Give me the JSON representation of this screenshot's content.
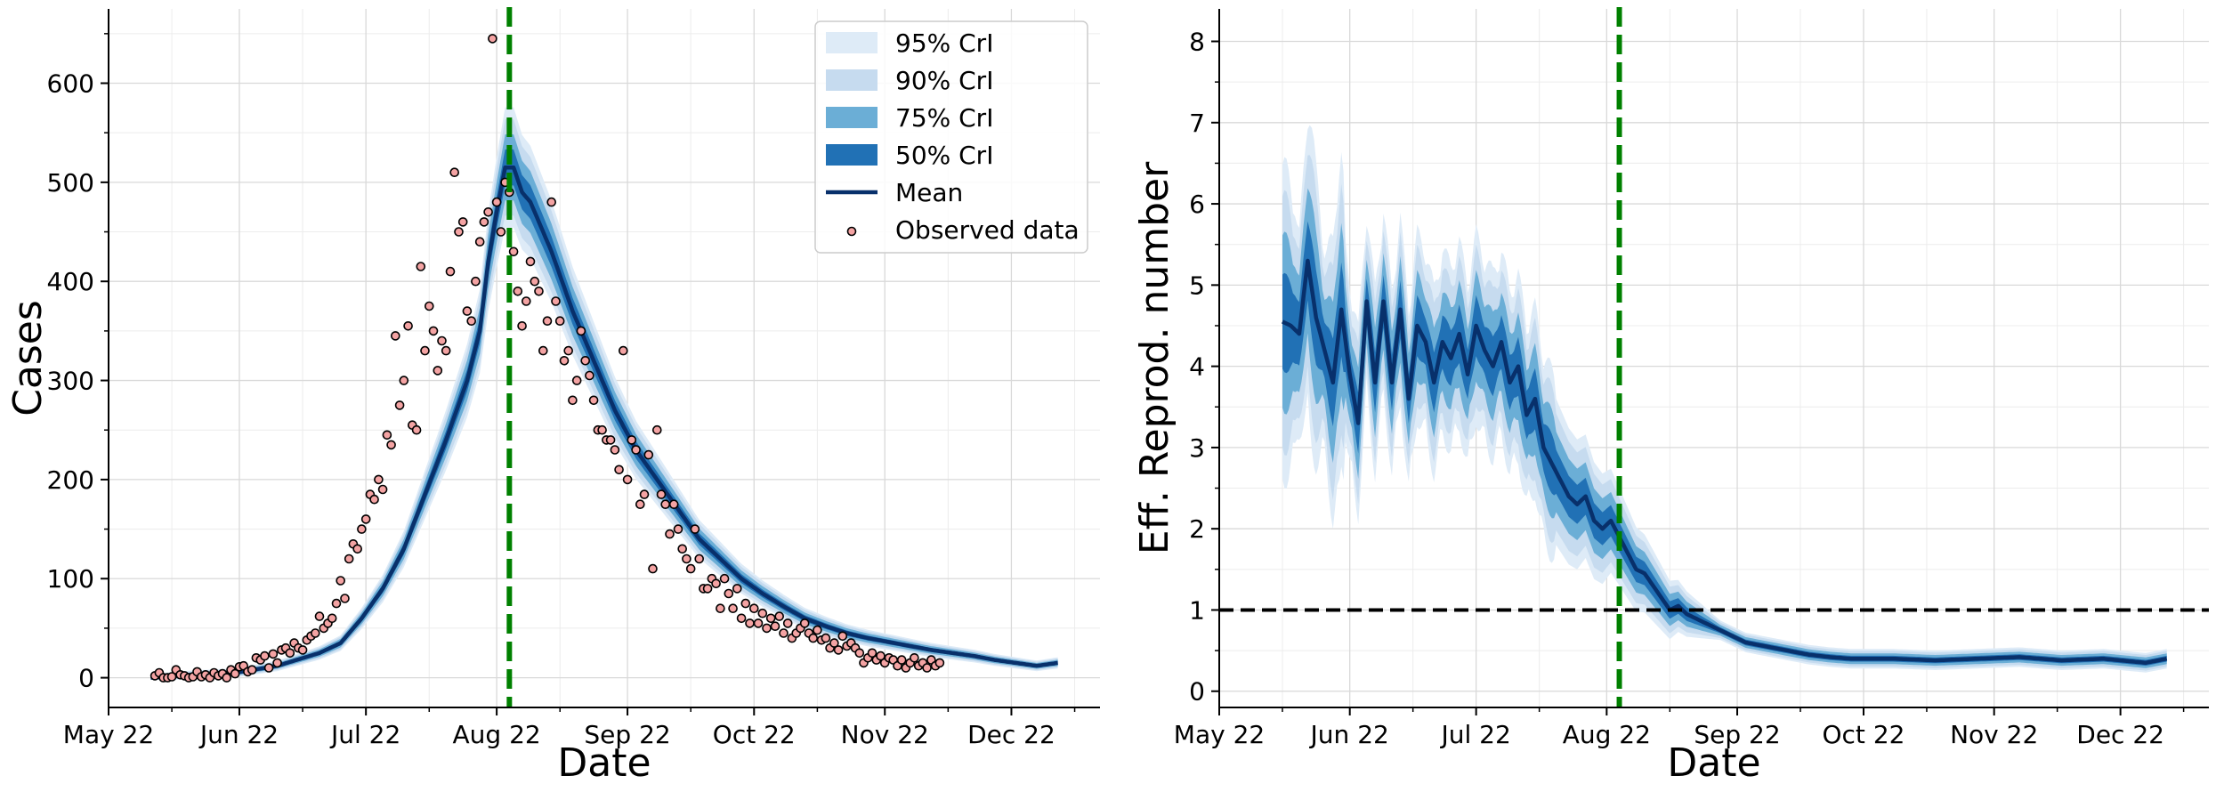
{
  "chart_data": [
    {
      "type": "line",
      "panel": "left",
      "title": "",
      "xlabel": "Date",
      "ylabel": "Cases",
      "x_tick_labels": [
        "May 22",
        "Jun 22",
        "Jul 22",
        "Aug 22",
        "Sep 22",
        "Oct 22",
        "Nov 22",
        "Dec 22"
      ],
      "y_ticks": [
        0,
        100,
        200,
        300,
        400,
        500,
        600
      ],
      "ylim": [
        -30,
        675
      ],
      "xlim_days": [
        0,
        235
      ],
      "grid": true,
      "legend_position": "top-right",
      "legend": [
        "95% CrI",
        "90% CrI",
        "75% CrI",
        "50% CrI",
        "Mean",
        "Observed data"
      ],
      "vline_day": 95,
      "band_colors": [
        "#deebf7",
        "#c6dbef",
        "#6baed6",
        "#2171b5"
      ],
      "mean_color": "#08306b",
      "vline_color": "#008000",
      "point_fill": "#f4a3a3",
      "mean_knots": [
        [
          10,
          0
        ],
        [
          20,
          3
        ],
        [
          30,
          5
        ],
        [
          40,
          12
        ],
        [
          50,
          25
        ],
        [
          55,
          35
        ],
        [
          60,
          60
        ],
        [
          65,
          90
        ],
        [
          70,
          130
        ],
        [
          75,
          185
        ],
        [
          80,
          240
        ],
        [
          85,
          300
        ],
        [
          88,
          350
        ],
        [
          90,
          420
        ],
        [
          92,
          470
        ],
        [
          94,
          515
        ],
        [
          96,
          515
        ],
        [
          98,
          490
        ],
        [
          100,
          480
        ],
        [
          102,
          460
        ],
        [
          105,
          430
        ],
        [
          110,
          370
        ],
        [
          115,
          320
        ],
        [
          120,
          270
        ],
        [
          125,
          230
        ],
        [
          130,
          200
        ],
        [
          135,
          170
        ],
        [
          140,
          140
        ],
        [
          145,
          120
        ],
        [
          150,
          100
        ],
        [
          155,
          85
        ],
        [
          160,
          72
        ],
        [
          165,
          60
        ],
        [
          170,
          52
        ],
        [
          175,
          45
        ],
        [
          180,
          40
        ],
        [
          185,
          36
        ],
        [
          190,
          32
        ],
        [
          195,
          28
        ],
        [
          200,
          25
        ],
        [
          205,
          22
        ],
        [
          210,
          18
        ],
        [
          215,
          15
        ],
        [
          220,
          12
        ],
        [
          225,
          15
        ]
      ],
      "observed": [
        [
          11,
          2
        ],
        [
          12,
          5
        ],
        [
          13,
          0
        ],
        [
          14,
          0
        ],
        [
          15,
          1
        ],
        [
          16,
          8
        ],
        [
          17,
          3
        ],
        [
          18,
          2
        ],
        [
          19,
          0
        ],
        [
          20,
          1
        ],
        [
          21,
          6
        ],
        [
          22,
          1
        ],
        [
          23,
          3
        ],
        [
          24,
          0
        ],
        [
          25,
          5
        ],
        [
          26,
          2
        ],
        [
          27,
          4
        ],
        [
          28,
          0
        ],
        [
          29,
          8
        ],
        [
          30,
          4
        ],
        [
          31,
          11
        ],
        [
          32,
          12
        ],
        [
          33,
          6
        ],
        [
          34,
          8
        ],
        [
          35,
          20
        ],
        [
          36,
          18
        ],
        [
          37,
          22
        ],
        [
          38,
          10
        ],
        [
          39,
          24
        ],
        [
          40,
          15
        ],
        [
          41,
          28
        ],
        [
          42,
          30
        ],
        [
          43,
          25
        ],
        [
          44,
          35
        ],
        [
          45,
          30
        ],
        [
          46,
          28
        ],
        [
          47,
          38
        ],
        [
          48,
          42
        ],
        [
          49,
          45
        ],
        [
          50,
          62
        ],
        [
          51,
          50
        ],
        [
          52,
          55
        ],
        [
          53,
          60
        ],
        [
          54,
          75
        ],
        [
          55,
          98
        ],
        [
          56,
          80
        ],
        [
          57,
          120
        ],
        [
          58,
          135
        ],
        [
          59,
          130
        ],
        [
          60,
          150
        ],
        [
          61,
          160
        ],
        [
          62,
          185
        ],
        [
          63,
          180
        ],
        [
          64,
          200
        ],
        [
          65,
          190
        ],
        [
          66,
          245
        ],
        [
          67,
          235
        ],
        [
          68,
          345
        ],
        [
          69,
          275
        ],
        [
          70,
          300
        ],
        [
          71,
          355
        ],
        [
          72,
          255
        ],
        [
          73,
          250
        ],
        [
          74,
          415
        ],
        [
          75,
          330
        ],
        [
          76,
          375
        ],
        [
          77,
          350
        ],
        [
          78,
          310
        ],
        [
          79,
          340
        ],
        [
          80,
          330
        ],
        [
          81,
          410
        ],
        [
          82,
          510
        ],
        [
          83,
          450
        ],
        [
          84,
          460
        ],
        [
          85,
          370
        ],
        [
          86,
          360
        ],
        [
          87,
          400
        ],
        [
          88,
          440
        ],
        [
          89,
          460
        ],
        [
          90,
          470
        ],
        [
          91,
          645
        ],
        [
          92,
          480
        ],
        [
          93,
          450
        ],
        [
          94,
          500
        ],
        [
          95,
          490
        ],
        [
          96,
          430
        ],
        [
          97,
          390
        ],
        [
          98,
          355
        ],
        [
          99,
          380
        ],
        [
          100,
          420
        ],
        [
          101,
          400
        ],
        [
          102,
          390
        ],
        [
          103,
          330
        ],
        [
          104,
          360
        ],
        [
          105,
          480
        ],
        [
          106,
          380
        ],
        [
          107,
          360
        ],
        [
          108,
          320
        ],
        [
          109,
          330
        ],
        [
          110,
          280
        ],
        [
          111,
          300
        ],
        [
          112,
          350
        ],
        [
          113,
          320
        ],
        [
          114,
          305
        ],
        [
          115,
          280
        ],
        [
          116,
          250
        ],
        [
          117,
          250
        ],
        [
          118,
          240
        ],
        [
          119,
          240
        ],
        [
          120,
          230
        ],
        [
          121,
          210
        ],
        [
          122,
          330
        ],
        [
          123,
          200
        ],
        [
          124,
          240
        ],
        [
          125,
          230
        ],
        [
          126,
          175
        ],
        [
          127,
          185
        ],
        [
          128,
          225
        ],
        [
          129,
          110
        ],
        [
          130,
          250
        ],
        [
          131,
          185
        ],
        [
          132,
          175
        ],
        [
          133,
          145
        ],
        [
          134,
          175
        ],
        [
          135,
          150
        ],
        [
          136,
          130
        ],
        [
          137,
          120
        ],
        [
          138,
          110
        ],
        [
          139,
          150
        ],
        [
          140,
          120
        ],
        [
          141,
          90
        ],
        [
          142,
          90
        ],
        [
          143,
          100
        ],
        [
          144,
          95
        ],
        [
          145,
          70
        ],
        [
          146,
          100
        ],
        [
          147,
          85
        ],
        [
          148,
          70
        ],
        [
          149,
          90
        ],
        [
          150,
          60
        ],
        [
          151,
          75
        ],
        [
          152,
          55
        ],
        [
          153,
          70
        ],
        [
          154,
          55
        ],
        [
          155,
          65
        ],
        [
          156,
          50
        ],
        [
          157,
          60
        ],
        [
          158,
          52
        ],
        [
          159,
          62
        ],
        [
          160,
          45
        ],
        [
          161,
          55
        ],
        [
          162,
          40
        ],
        [
          163,
          45
        ],
        [
          164,
          50
        ],
        [
          165,
          55
        ],
        [
          166,
          45
        ],
        [
          167,
          40
        ],
        [
          168,
          48
        ],
        [
          169,
          38
        ],
        [
          170,
          40
        ],
        [
          171,
          30
        ],
        [
          172,
          35
        ],
        [
          173,
          28
        ],
        [
          174,
          42
        ],
        [
          175,
          32
        ],
        [
          176,
          35
        ],
        [
          177,
          30
        ],
        [
          178,
          25
        ],
        [
          179,
          15
        ],
        [
          180,
          20
        ],
        [
          181,
          25
        ],
        [
          182,
          18
        ],
        [
          183,
          22
        ],
        [
          184,
          15
        ],
        [
          185,
          20
        ],
        [
          186,
          18
        ],
        [
          187,
          12
        ],
        [
          188,
          18
        ],
        [
          189,
          10
        ],
        [
          190,
          15
        ],
        [
          191,
          20
        ],
        [
          192,
          12
        ],
        [
          193,
          15
        ],
        [
          194,
          10
        ],
        [
          195,
          18
        ],
        [
          196,
          12
        ],
        [
          197,
          15
        ]
      ]
    },
    {
      "type": "line",
      "panel": "right",
      "title": "",
      "xlabel": "Date",
      "ylabel": "Eff. Reprod. number",
      "x_tick_labels": [
        "May 22",
        "Jun 22",
        "Jul 22",
        "Aug 22",
        "Sep 22",
        "Oct 22",
        "Nov 22",
        "Dec 22"
      ],
      "y_ticks": [
        0,
        1,
        2,
        3,
        4,
        5,
        6,
        7,
        8
      ],
      "ylim": [
        -0.2,
        8.4
      ],
      "xlim_days": [
        0,
        235
      ],
      "grid": true,
      "hline_value": 1,
      "hline_color": "#000000",
      "vline_day": 95,
      "vline_color": "#008000",
      "band_colors": [
        "#deebf7",
        "#c6dbef",
        "#6baed6",
        "#2171b5"
      ],
      "mean_color": "#08306b",
      "mean_knots": [
        [
          15,
          4.55
        ],
        [
          17,
          4.5
        ],
        [
          19,
          4.4
        ],
        [
          21,
          5.3
        ],
        [
          23,
          4.6
        ],
        [
          25,
          4.2
        ],
        [
          27,
          3.8
        ],
        [
          29,
          4.7
        ],
        [
          31,
          3.9
        ],
        [
          33,
          3.3
        ],
        [
          35,
          4.8
        ],
        [
          37,
          3.8
        ],
        [
          39,
          4.8
        ],
        [
          41,
          3.8
        ],
        [
          43,
          4.7
        ],
        [
          45,
          3.6
        ],
        [
          47,
          4.5
        ],
        [
          49,
          4.3
        ],
        [
          51,
          3.8
        ],
        [
          53,
          4.3
        ],
        [
          55,
          4.1
        ],
        [
          57,
          4.4
        ],
        [
          59,
          3.9
        ],
        [
          61,
          4.5
        ],
        [
          63,
          4.2
        ],
        [
          65,
          4.0
        ],
        [
          67,
          4.3
        ],
        [
          69,
          3.8
        ],
        [
          71,
          4.0
        ],
        [
          73,
          3.4
        ],
        [
          75,
          3.6
        ],
        [
          77,
          3.0
        ],
        [
          79,
          2.8
        ],
        [
          81,
          2.6
        ],
        [
          83,
          2.4
        ],
        [
          85,
          2.3
        ],
        [
          87,
          2.4
        ],
        [
          89,
          2.1
        ],
        [
          91,
          2.0
        ],
        [
          93,
          2.1
        ],
        [
          95,
          1.9
        ],
        [
          97,
          1.7
        ],
        [
          99,
          1.5
        ],
        [
          101,
          1.45
        ],
        [
          103,
          1.3
        ],
        [
          105,
          1.15
        ],
        [
          107,
          1.0
        ],
        [
          109,
          1.05
        ],
        [
          111,
          0.95
        ],
        [
          113,
          0.9
        ],
        [
          115,
          0.85
        ],
        [
          117,
          0.8
        ],
        [
          119,
          0.75
        ],
        [
          121,
          0.7
        ],
        [
          125,
          0.6
        ],
        [
          130,
          0.55
        ],
        [
          135,
          0.5
        ],
        [
          140,
          0.45
        ],
        [
          145,
          0.42
        ],
        [
          150,
          0.4
        ],
        [
          160,
          0.4
        ],
        [
          170,
          0.38
        ],
        [
          180,
          0.4
        ],
        [
          190,
          0.42
        ],
        [
          200,
          0.38
        ],
        [
          210,
          0.4
        ],
        [
          220,
          0.35
        ],
        [
          225,
          0.4
        ]
      ]
    }
  ]
}
